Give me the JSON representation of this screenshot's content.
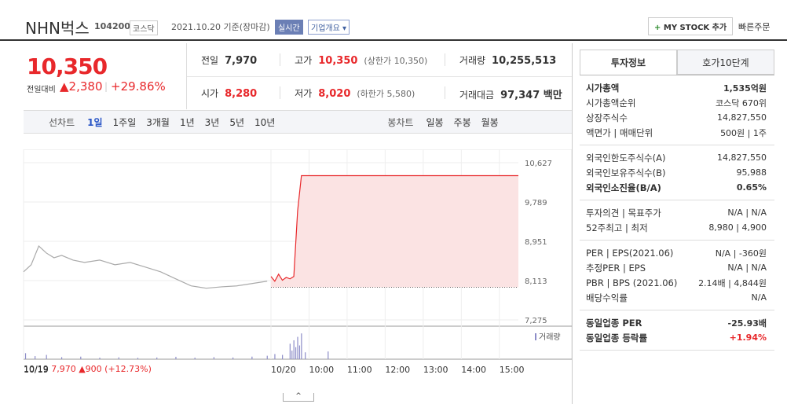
{
  "header": {
    "name": "NHN벅스",
    "code": "104200",
    "market": "코스닥",
    "date": "2021.10.20 기준(장마감)",
    "realtime": "실시간",
    "overview": "기업개요",
    "mystock": "MY STOCK 추가",
    "quick_order": "빠른주문"
  },
  "quote": {
    "price": "10,350",
    "change_label": "전일대비",
    "change": "2,380",
    "change_pct": "+29.86%"
  },
  "stats": {
    "rows": [
      [
        {
          "label": "전일",
          "value": "7,970"
        },
        {
          "label": "고가",
          "value": "10,350",
          "note": "(상한가 10,350)"
        },
        {
          "label": "거래량",
          "value": "10,255,513"
        }
      ],
      [
        {
          "label": "시가",
          "value": "8,280"
        },
        {
          "label": "저가",
          "value": "8,020",
          "note": "(하한가 5,580)"
        },
        {
          "label": "거래대금",
          "value": "97,347 백만"
        }
      ]
    ]
  },
  "toolbar": {
    "line_chart": {
      "label": "선차트",
      "periods": [
        "1일",
        "1주일",
        "3개월",
        "1년",
        "3년",
        "5년",
        "10년"
      ]
    },
    "candle_chart": {
      "label": "봉차트",
      "periods": [
        "일봉",
        "주봉",
        "월봉"
      ]
    }
  },
  "chart_data": {
    "type": "line",
    "base_value": 7970,
    "xlim": [
      0,
      13
    ],
    "xticks": [
      {
        "value": 0,
        "label": "10/19"
      },
      {
        "value": 6.5,
        "label": "10/20"
      },
      {
        "value": 7.5,
        "label": "10:00"
      },
      {
        "value": 8.5,
        "label": "11:00"
      },
      {
        "value": 9.5,
        "label": "12:00"
      },
      {
        "value": 10.5,
        "label": "13:00"
      },
      {
        "value": 11.5,
        "label": "14:00"
      },
      {
        "value": 12.5,
        "label": "15:00"
      }
    ],
    "ylim": [
      7107,
      10744
    ],
    "yticks": [
      {
        "value": 10627,
        "label": "10,627"
      },
      {
        "value": 9789,
        "label": "9,789"
      },
      {
        "value": 8951,
        "label": "8,951"
      },
      {
        "value": 8113,
        "label": "8,113"
      },
      {
        "value": 7275,
        "label": "7,275"
      }
    ],
    "series": [
      {
        "color": "#aaaaaa",
        "x": [
          0,
          0.2,
          0.4,
          0.6,
          0.8,
          1.0,
          1.3,
          1.6,
          2.0,
          2.4,
          2.8,
          3.2,
          3.6,
          4.0,
          4.4,
          4.8,
          5.2,
          5.6,
          6.0,
          6.4
        ],
        "values": [
          8300,
          8450,
          8850,
          8700,
          8600,
          8650,
          8550,
          8500,
          8550,
          8450,
          8500,
          8400,
          8300,
          8150,
          8000,
          7950,
          7980,
          8000,
          8050,
          8100
        ]
      },
      {
        "color": "#e8282b",
        "fill": "#fbe3e3",
        "x": [
          6.5,
          6.6,
          6.7,
          6.8,
          6.9,
          7.0,
          7.1,
          7.2,
          7.3,
          13.0
        ],
        "values": [
          8200,
          8100,
          8250,
          8120,
          8180,
          8150,
          8200,
          9600,
          10350,
          10350
        ]
      }
    ],
    "volume": {
      "label": "거래량",
      "color": "#8c8cc8",
      "ylim": [
        0,
        1600000
      ],
      "x": [
        0.05,
        0.3,
        0.6,
        1.0,
        1.5,
        2.0,
        2.5,
        3.0,
        3.5,
        4.0,
        4.5,
        5.0,
        5.5,
        6.0,
        6.4,
        6.6,
        6.8,
        7.0,
        7.05,
        7.1,
        7.15,
        7.2,
        7.25,
        7.3,
        7.4,
        8.0
      ],
      "values": [
        350000,
        180000,
        250000,
        120000,
        150000,
        90000,
        110000,
        80000,
        100000,
        140000,
        90000,
        120000,
        100000,
        150000,
        200000,
        300000,
        250000,
        900000,
        500000,
        1100000,
        700000,
        1300000,
        800000,
        1500000,
        400000,
        450000
      ]
    }
  },
  "prev_summary": {
    "date": "10/19",
    "price": "7,970",
    "change": "900",
    "change_pct": "(+12.73%)"
  },
  "panel": {
    "tabs": [
      "투자정보",
      "호가10단계"
    ],
    "groups": [
      [
        {
          "label": "시가총액",
          "value": "1,535억원"
        },
        {
          "label": "시가총액순위",
          "value": "코스닥 670위"
        },
        {
          "label": "상장주식수",
          "value": "14,827,550"
        },
        {
          "label": "액면가 | 매매단위",
          "value": "500원 | 1주"
        }
      ],
      [
        {
          "label": "외국인한도주식수(A)",
          "value": "14,827,550"
        },
        {
          "label": "외국인보유주식수(B)",
          "value": "95,988"
        },
        {
          "label": "외국인소진율(B/A)",
          "value": "0.65%"
        }
      ],
      [
        {
          "label": "투자의견 | 목표주가",
          "value": "N/A | N/A"
        },
        {
          "label": "52주최고 | 최저",
          "value": "8,980 | 4,900"
        }
      ],
      [
        {
          "label": "PER | EPS(2021.06)",
          "value": "N/A | -360원"
        },
        {
          "label": "추정PER | EPS",
          "value": "N/A | N/A"
        },
        {
          "label": "PBR | BPS (2021.06)",
          "value": "2.14배 | 4,844원"
        },
        {
          "label": "배당수익률",
          "value": "N/A"
        }
      ],
      [
        {
          "label": "동일업종 PER",
          "value": "-25.93배"
        },
        {
          "label": "동일업종 등락률",
          "value": "+1.94%"
        }
      ]
    ]
  }
}
